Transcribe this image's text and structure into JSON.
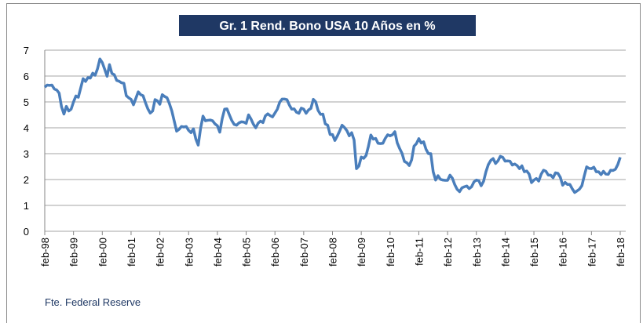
{
  "chart_data": {
    "type": "line",
    "title": "Gr. 1 Rend. Bono USA 10 Años en %",
    "source": "Fte. Federal Reserve",
    "categories": [
      "feb-98",
      null,
      null,
      null,
      null,
      null,
      null,
      null,
      null,
      null,
      null,
      null,
      "feb-99",
      null,
      null,
      null,
      null,
      null,
      null,
      null,
      null,
      null,
      null,
      null,
      "feb-00",
      null,
      null,
      null,
      null,
      null,
      null,
      null,
      null,
      null,
      null,
      null,
      "feb-01",
      null,
      null,
      null,
      null,
      null,
      null,
      null,
      null,
      null,
      null,
      null,
      "feb-02",
      null,
      null,
      null,
      null,
      null,
      null,
      null,
      null,
      null,
      null,
      null,
      "feb-03",
      null,
      null,
      null,
      null,
      null,
      null,
      null,
      null,
      null,
      null,
      null,
      "feb-04",
      null,
      null,
      null,
      null,
      null,
      null,
      null,
      null,
      null,
      null,
      null,
      "feb-05",
      null,
      null,
      null,
      null,
      null,
      null,
      null,
      null,
      null,
      null,
      null,
      "feb-06",
      null,
      null,
      null,
      null,
      null,
      null,
      null,
      null,
      null,
      null,
      null,
      "feb-07",
      null,
      null,
      null,
      null,
      null,
      null,
      null,
      null,
      null,
      null,
      null,
      "feb-08",
      null,
      null,
      null,
      null,
      null,
      null,
      null,
      null,
      null,
      null,
      null,
      "feb-09",
      null,
      null,
      null,
      null,
      null,
      null,
      null,
      null,
      null,
      null,
      null,
      "feb-10",
      null,
      null,
      null,
      null,
      null,
      null,
      null,
      null,
      null,
      null,
      null,
      "feb-11",
      null,
      null,
      null,
      null,
      null,
      null,
      null,
      null,
      null,
      null,
      null,
      "feb-12",
      null,
      null,
      null,
      null,
      null,
      null,
      null,
      null,
      null,
      null,
      null,
      "feb-13",
      null,
      null,
      null,
      null,
      null,
      null,
      null,
      null,
      null,
      null,
      null,
      "feb-14",
      null,
      null,
      null,
      null,
      null,
      null,
      null,
      null,
      null,
      null,
      null,
      "feb-15",
      null,
      null,
      null,
      null,
      null,
      null,
      null,
      null,
      null,
      null,
      null,
      "feb-16",
      null,
      null,
      null,
      null,
      null,
      null,
      null,
      null,
      null,
      null,
      null,
      "feb-17",
      null,
      null,
      null,
      null,
      null,
      null,
      null,
      null,
      null,
      null,
      null,
      "feb-18"
    ],
    "series": [
      {
        "name": "Rend. Bono USA 10 Años",
        "color": "#4a7ebb",
        "values": [
          5.57,
          5.65,
          5.64,
          5.65,
          5.5,
          5.46,
          5.34,
          4.81,
          4.53,
          4.83,
          4.65,
          4.72,
          5.0,
          5.23,
          5.18,
          5.54,
          5.9,
          5.79,
          5.94,
          5.92,
          6.11,
          6.03,
          6.28,
          6.66,
          6.52,
          6.26,
          5.99,
          6.44,
          6.1,
          6.05,
          5.83,
          5.8,
          5.74,
          5.72,
          5.24,
          5.16,
          5.1,
          4.89,
          5.14,
          5.39,
          5.28,
          5.24,
          4.97,
          4.73,
          4.57,
          4.65,
          5.09,
          5.04,
          4.91,
          5.28,
          5.21,
          5.16,
          4.93,
          4.65,
          4.26,
          3.87,
          3.94,
          4.05,
          4.03,
          4.05,
          3.9,
          3.81,
          3.96,
          3.57,
          3.33,
          3.98,
          4.45,
          4.27,
          4.29,
          4.3,
          4.27,
          4.15,
          4.08,
          3.83,
          4.35,
          4.72,
          4.73,
          4.5,
          4.28,
          4.13,
          4.1,
          4.19,
          4.23,
          4.22,
          4.17,
          4.5,
          4.34,
          4.14,
          4.0,
          4.18,
          4.26,
          4.2,
          4.46,
          4.54,
          4.47,
          4.42,
          4.57,
          4.72,
          4.99,
          5.11,
          5.11,
          5.09,
          4.88,
          4.72,
          4.73,
          4.6,
          4.56,
          4.76,
          4.72,
          4.56,
          4.69,
          4.75,
          5.1,
          5.0,
          4.67,
          4.52,
          4.53,
          4.15,
          4.1,
          3.74,
          3.74,
          3.51,
          3.68,
          3.88,
          4.1,
          4.01,
          3.89,
          3.69,
          3.81,
          3.53,
          2.42,
          2.52,
          2.87,
          2.82,
          2.93,
          3.29,
          3.72,
          3.56,
          3.59,
          3.4,
          3.39,
          3.4,
          3.59,
          3.73,
          3.69,
          3.73,
          3.85,
          3.42,
          3.2,
          3.01,
          2.7,
          2.65,
          2.54,
          2.76,
          3.29,
          3.39,
          3.58,
          3.41,
          3.46,
          3.17,
          3.0,
          3.0,
          2.3,
          1.98,
          2.15,
          2.01,
          1.98,
          1.97,
          1.97,
          2.17,
          2.05,
          1.8,
          1.62,
          1.53,
          1.68,
          1.72,
          1.75,
          1.65,
          1.72,
          1.91,
          1.98,
          1.96,
          1.76,
          1.93,
          2.3,
          2.58,
          2.74,
          2.81,
          2.62,
          2.72,
          2.9,
          2.86,
          2.71,
          2.72,
          2.71,
          2.56,
          2.6,
          2.54,
          2.42,
          2.53,
          2.3,
          2.33,
          2.21,
          1.88,
          1.98,
          2.04,
          1.94,
          2.2,
          2.36,
          2.32,
          2.17,
          2.17,
          2.07,
          2.26,
          2.24,
          2.09,
          1.78,
          1.89,
          1.81,
          1.81,
          1.64,
          1.5,
          1.56,
          1.63,
          1.76,
          2.14,
          2.49,
          2.43,
          2.42,
          2.48,
          2.3,
          2.3,
          2.19,
          2.32,
          2.21,
          2.2,
          2.36,
          2.35,
          2.4,
          2.58,
          2.86
        ]
      }
    ],
    "ylim": [
      0,
      7
    ],
    "yticks": [
      0,
      1,
      2,
      3,
      4,
      5,
      6,
      7
    ],
    "grid": true,
    "legend": false
  }
}
